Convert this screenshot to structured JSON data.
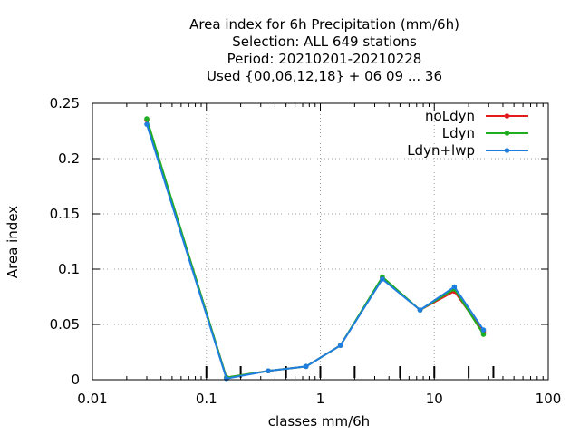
{
  "chart_data": {
    "type": "line",
    "title_lines": [
      "Area index  for 6h Precipitation (mm/6h)",
      "Selection: ALL    649 stations",
      "Period: 20210201-20210228",
      "Used {00,06,12,18} + 06 09 ... 36"
    ],
    "xlabel": "classes mm/6h",
    "ylabel": "Area index",
    "x_scale": "log",
    "xlim": [
      0.01,
      100
    ],
    "ylim": [
      0,
      0.25
    ],
    "x_ticks": [
      0.01,
      0.1,
      1,
      10,
      100
    ],
    "x_tick_labels": [
      "0.01",
      "0.1",
      "1",
      "10",
      "100"
    ],
    "y_ticks": [
      0,
      0.05,
      0.1,
      0.15,
      0.2,
      0.25
    ],
    "y_tick_labels": [
      "0",
      "0.05",
      "0.1",
      "0.15",
      "0.2",
      "0.25"
    ],
    "class_boundaries": [
      0.1,
      0.2,
      0.5,
      1,
      2,
      5,
      10,
      20,
      33
    ],
    "grid": true,
    "legend_position": "top-right",
    "series": [
      {
        "name": "noLdyn",
        "color": "#e41a1c",
        "x": [
          0.03,
          0.15,
          0.35,
          0.75,
          1.5,
          3.5,
          7.5,
          15,
          27
        ],
        "y": [
          0.235,
          0.002,
          0.008,
          0.012,
          0.031,
          0.092,
          0.063,
          0.08,
          0.043
        ]
      },
      {
        "name": "Ldyn",
        "color": "#1fae1f",
        "x": [
          0.03,
          0.15,
          0.35,
          0.75,
          1.5,
          3.5,
          7.5,
          15,
          27
        ],
        "y": [
          0.236,
          0.002,
          0.008,
          0.012,
          0.031,
          0.093,
          0.063,
          0.082,
          0.041
        ]
      },
      {
        "name": "Ldyn+lwp",
        "color": "#1e7fe0",
        "x": [
          0.03,
          0.15,
          0.35,
          0.75,
          1.5,
          3.5,
          7.5,
          15,
          27
        ],
        "y": [
          0.231,
          0.001,
          0.008,
          0.012,
          0.031,
          0.091,
          0.063,
          0.084,
          0.045
        ]
      }
    ]
  }
}
